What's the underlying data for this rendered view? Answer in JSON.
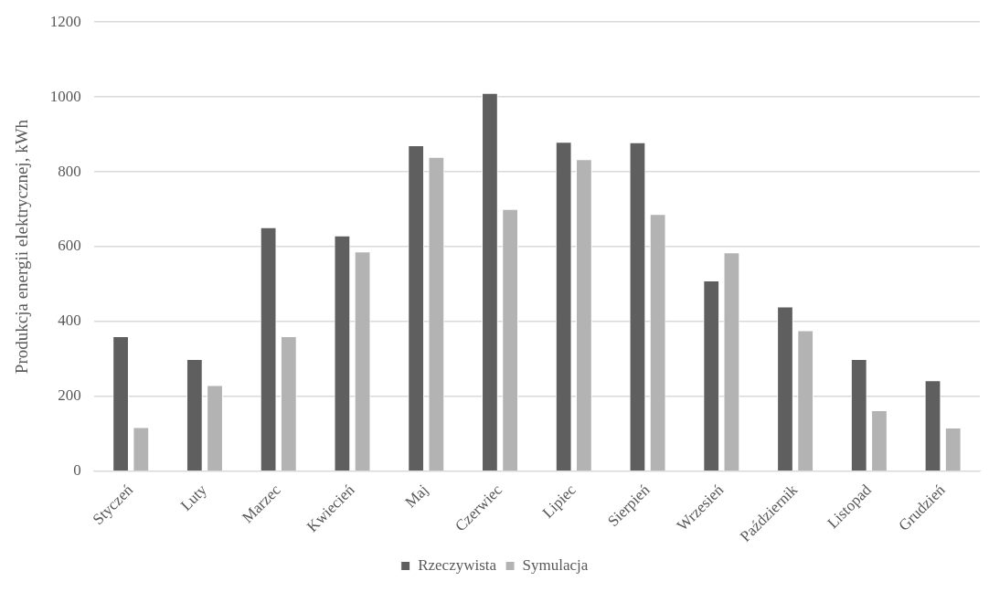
{
  "chart_data": {
    "type": "bar",
    "ylabel": "Produkcja energii elektrycznej, kWh",
    "categories": [
      "Styczeń",
      "Luty",
      "Marzec",
      "Kwiecień",
      "Maj",
      "Czerwiec",
      "Lipiec",
      "Sierpień",
      "Wrzesień",
      "Październik",
      "Listopad",
      "Grudzień"
    ],
    "series": [
      {
        "name": "Rzeczywista",
        "color": "#5f5f5f",
        "values": [
          361,
          300,
          652,
          630,
          871,
          1011,
          880,
          879,
          510,
          440,
          300,
          243
        ]
      },
      {
        "name": "Symulacja",
        "color": "#b3b3b3",
        "values": [
          118,
          230,
          361,
          587,
          840,
          701,
          834,
          687,
          585,
          377,
          163,
          117
        ]
      }
    ],
    "ylim": [
      0,
      1200
    ],
    "yticks": [
      0,
      200,
      400,
      600,
      800,
      1000,
      1200
    ],
    "grid": "y",
    "legend": "bottom"
  }
}
